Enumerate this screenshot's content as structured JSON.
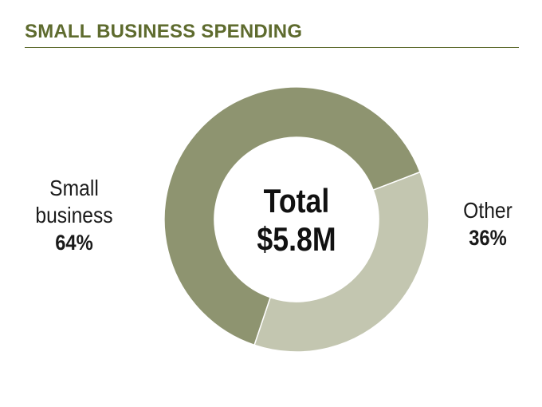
{
  "header": {
    "title": "SMALL BUSINESS SPENDING"
  },
  "colors": {
    "title": "#5e6b2e",
    "rule": "#5e6b2e",
    "small_business": "#8e9470",
    "other": "#c3c6b0"
  },
  "chart_data": {
    "type": "pie",
    "donut": true,
    "title": "SMALL BUSINESS SPENDING",
    "center_label": [
      "Total",
      "$5.8M"
    ],
    "slices": [
      {
        "label": "Small business",
        "label_lines": [
          "Small",
          "business"
        ],
        "value": 64,
        "display": "64%",
        "color": "#8e9470"
      },
      {
        "label": "Other",
        "label_lines": [
          "Other"
        ],
        "value": 36,
        "display": "36%",
        "color": "#c3c6b0"
      }
    ],
    "legend": "none"
  }
}
